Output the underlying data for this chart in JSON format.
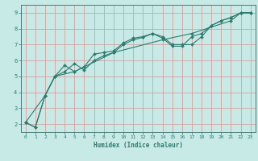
{
  "xlabel": "Humidex (Indice chaleur)",
  "bg_color": "#c8eae6",
  "grid_color": "#d4a0a0",
  "line_color": "#2d7a6e",
  "marker": "D",
  "markersize": 2.0,
  "linewidth": 0.8,
  "xlim": [
    -0.5,
    23.5
  ],
  "ylim": [
    1.5,
    9.5
  ],
  "xticks": [
    0,
    1,
    2,
    3,
    4,
    5,
    6,
    7,
    8,
    9,
    10,
    11,
    12,
    13,
    14,
    15,
    16,
    17,
    18,
    19,
    20,
    21,
    22,
    23
  ],
  "yticks": [
    2,
    3,
    4,
    5,
    6,
    7,
    8,
    9
  ],
  "series1": [
    [
      0,
      2.1
    ],
    [
      1,
      1.8
    ],
    [
      2,
      3.8
    ],
    [
      3,
      5.0
    ],
    [
      4,
      5.3
    ],
    [
      5,
      5.8
    ],
    [
      6,
      5.4
    ],
    [
      7,
      6.0
    ],
    [
      8,
      6.3
    ],
    [
      9,
      6.5
    ],
    [
      10,
      7.0
    ],
    [
      11,
      7.3
    ],
    [
      12,
      7.45
    ],
    [
      13,
      7.7
    ],
    [
      14,
      7.5
    ],
    [
      15,
      7.0
    ],
    [
      16,
      7.0
    ],
    [
      17,
      7.0
    ],
    [
      18,
      7.5
    ],
    [
      19,
      8.2
    ],
    [
      20,
      8.5
    ],
    [
      21,
      8.7
    ],
    [
      22,
      9.0
    ],
    [
      23,
      9.0
    ]
  ],
  "series2": [
    [
      0,
      2.1
    ],
    [
      1,
      1.8
    ],
    [
      2,
      3.8
    ],
    [
      3,
      5.0
    ],
    [
      4,
      5.7
    ],
    [
      5,
      5.3
    ],
    [
      6,
      5.6
    ],
    [
      7,
      6.4
    ],
    [
      8,
      6.5
    ],
    [
      9,
      6.6
    ],
    [
      10,
      7.1
    ],
    [
      11,
      7.4
    ],
    [
      12,
      7.5
    ],
    [
      13,
      7.7
    ],
    [
      14,
      7.4
    ],
    [
      15,
      6.9
    ],
    [
      16,
      6.9
    ],
    [
      17,
      7.5
    ],
    [
      18,
      7.7
    ],
    [
      19,
      8.2
    ],
    [
      20,
      8.5
    ],
    [
      21,
      8.7
    ],
    [
      22,
      9.0
    ],
    [
      23,
      9.0
    ]
  ],
  "series3": [
    [
      0,
      2.1
    ],
    [
      2,
      3.8
    ],
    [
      3,
      5.0
    ],
    [
      5,
      5.3
    ],
    [
      9,
      6.5
    ],
    [
      14,
      7.3
    ],
    [
      17,
      7.7
    ],
    [
      21,
      8.5
    ],
    [
      22,
      9.0
    ],
    [
      23,
      9.0
    ]
  ]
}
